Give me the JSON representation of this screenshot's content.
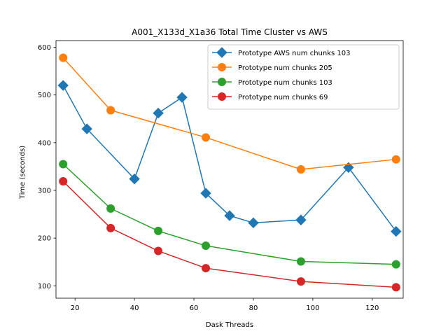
{
  "chart_data": {
    "type": "line",
    "title": "A001_X133d_X1a36 Total Time Cluster vs AWS",
    "xlabel": "Dask Threads",
    "ylabel": "Time (seconds)",
    "xlim": [
      13.6,
      130.4
    ],
    "ylim": [
      74,
      614
    ],
    "xticks": [
      20,
      40,
      60,
      80,
      100,
      120
    ],
    "yticks": [
      100,
      200,
      300,
      400,
      500,
      600
    ],
    "grid": false,
    "legend_position": "top-right",
    "series": [
      {
        "name": "Prototype AWS num chunks 103",
        "color": "#1f77b4",
        "marker": "diamond",
        "x": [
          16,
          24,
          40,
          48,
          56,
          64,
          72,
          80,
          96,
          112,
          128
        ],
        "y": [
          520,
          429,
          324,
          462,
          495,
          294,
          247,
          232,
          238,
          348,
          214
        ]
      },
      {
        "name": "Prototype num chunks 205",
        "color": "#ff7f0e",
        "marker": "circle",
        "x": [
          16,
          32,
          64,
          96,
          128
        ],
        "y": [
          578,
          468,
          411,
          344,
          365
        ]
      },
      {
        "name": "Prototype num chunks 103",
        "color": "#2ca02c",
        "marker": "circle",
        "x": [
          16,
          32,
          48,
          64,
          96,
          128
        ],
        "y": [
          355,
          262,
          215,
          184,
          151,
          145
        ]
      },
      {
        "name": "Prototype num chunks 69",
        "color": "#d62728",
        "marker": "circle",
        "x": [
          16,
          32,
          48,
          64,
          96,
          128
        ],
        "y": [
          319,
          221,
          173,
          137,
          109,
          97
        ]
      }
    ]
  }
}
